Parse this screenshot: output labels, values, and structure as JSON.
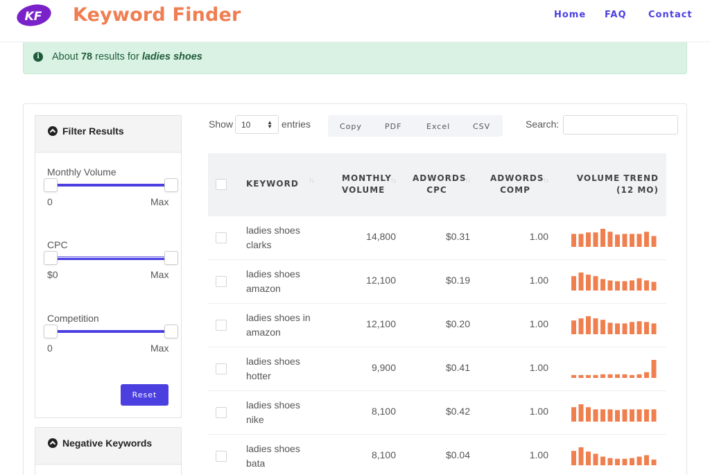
{
  "header": {
    "logo_text": "KF",
    "brand": "Keyword Finder",
    "nav": [
      "Home",
      "FAQ",
      "Contact"
    ]
  },
  "alert": {
    "icon": "info-circle-icon",
    "prefix": "About",
    "count": "78",
    "middle": "results for",
    "query": "ladies shoes"
  },
  "filters": {
    "title": "Filter Results",
    "monthly_volume": {
      "label": "Monthly Volume",
      "min": "0",
      "max": "Max"
    },
    "cpc": {
      "label": "CPC",
      "min": "$0",
      "max": "Max"
    },
    "competition": {
      "label": "Competition",
      "min": "0",
      "max": "Max"
    },
    "reset_label": "Reset"
  },
  "negative": {
    "title": "Negative Keywords"
  },
  "tools": {
    "show": "Show",
    "entries_value": "10",
    "entries": "entries",
    "buttons": [
      "Copy",
      "PDF",
      "Excel",
      "CSV"
    ],
    "search_label": "Search:",
    "search_value": ""
  },
  "table": {
    "headers": {
      "keyword": "KEYWORD",
      "monthly_volume": [
        "MONTHLY",
        "VOLUME"
      ],
      "adwords_cpc": [
        "ADWORDS",
        "CPC"
      ],
      "adwords_comp": [
        "ADWORDS",
        "COMP"
      ],
      "volume_trend": [
        "VOLUME TREND",
        "(12 MO)"
      ]
    },
    "colors": {
      "trend_bar": "#f07f4f",
      "accent": "#4b3fe0"
    },
    "rows": [
      {
        "keyword": [
          "ladies shoes",
          "clarks"
        ],
        "volume": "14,800",
        "cpc": "$0.31",
        "comp": "1.00",
        "trend": [
          0.72,
          0.72,
          0.8,
          0.8,
          1.0,
          0.84,
          0.68,
          0.72,
          0.72,
          0.72,
          0.84,
          0.6
        ]
      },
      {
        "keyword": [
          "ladies shoes",
          "amazon"
        ],
        "volume": "12,100",
        "cpc": "$0.19",
        "comp": "1.00",
        "trend": [
          0.8,
          1.0,
          0.88,
          0.8,
          0.64,
          0.56,
          0.52,
          0.52,
          0.56,
          0.68,
          0.56,
          0.48
        ]
      },
      {
        "keyword": [
          "ladies shoes in",
          "amazon"
        ],
        "volume": "12,100",
        "cpc": "$0.20",
        "comp": "1.00",
        "trend": [
          0.76,
          0.88,
          1.0,
          0.88,
          0.8,
          0.64,
          0.6,
          0.6,
          0.68,
          0.72,
          0.68,
          0.6
        ]
      },
      {
        "keyword": [
          "ladies shoes",
          "hotter"
        ],
        "volume": "9,900",
        "cpc": "$0.41",
        "comp": "1.00",
        "trend": [
          0.16,
          0.16,
          0.16,
          0.16,
          0.2,
          0.2,
          0.2,
          0.2,
          0.16,
          0.2,
          0.32,
          1.0
        ]
      },
      {
        "keyword": [
          "ladies shoes",
          "nike"
        ],
        "volume": "8,100",
        "cpc": "$0.42",
        "comp": "1.00",
        "trend": [
          0.8,
          0.96,
          0.8,
          0.68,
          0.68,
          0.68,
          0.64,
          0.68,
          0.68,
          0.68,
          0.68,
          0.68
        ]
      },
      {
        "keyword": [
          "ladies shoes",
          "bata"
        ],
        "volume": "8,100",
        "cpc": "$0.04",
        "comp": "1.00",
        "trend": [
          0.8,
          1.0,
          0.76,
          0.64,
          0.48,
          0.4,
          0.36,
          0.36,
          0.4,
          0.48,
          0.56,
          0.32
        ]
      }
    ]
  }
}
